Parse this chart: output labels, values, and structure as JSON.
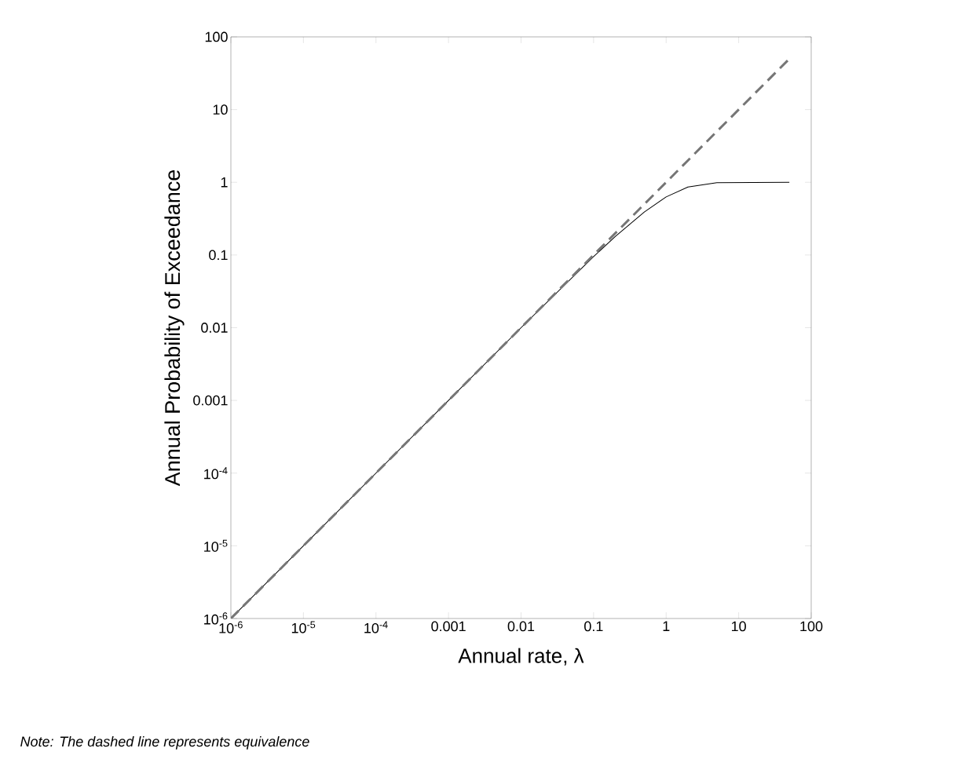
{
  "chart_data": {
    "type": "line",
    "xlabel": "Annual rate, λ",
    "ylabel": "Annual Probability of Exceedance",
    "log": "xy",
    "annotations": [
      "Note: The dashed line represents equivalence"
    ],
    "xlim": [
      1e-06,
      100
    ],
    "ylim": [
      1e-06,
      100
    ],
    "xticks": [
      {
        "value": 1e-06,
        "label": "10$^{-6}$"
      },
      {
        "value": 1e-05,
        "label": "10$^{-5}$"
      },
      {
        "value": 0.0001,
        "label": "10$^{-4}$"
      },
      0.001,
      0.01,
      0.1,
      1,
      10,
      100
    ],
    "yticks": [
      {
        "value": 1e-06,
        "label": "10$^{-6}$"
      },
      {
        "value": 1e-05,
        "label": "10$^{-5}$"
      },
      {
        "value": 0.0001,
        "label": "10$^{-4}$"
      },
      0.001,
      0.01,
      0.1,
      1,
      10,
      100
    ],
    "series": [
      {
        "color": "#000000",
        "line_style": "solid",
        "x": [
          1e-06,
          1e-05,
          0.0001,
          0.001,
          0.01,
          0.1,
          0.2,
          0.5,
          1,
          2,
          5,
          50
        ],
        "values": [
          1e-06,
          1e-05,
          0.0001,
          0.001,
          0.01,
          0.095,
          0.18,
          0.39,
          0.63,
          0.86,
          0.99,
          1
        ]
      },
      {
        "color": "#767676",
        "line_style": "dashed",
        "x": [
          1e-06,
          50
        ],
        "values": [
          1e-06,
          50
        ]
      }
    ]
  }
}
